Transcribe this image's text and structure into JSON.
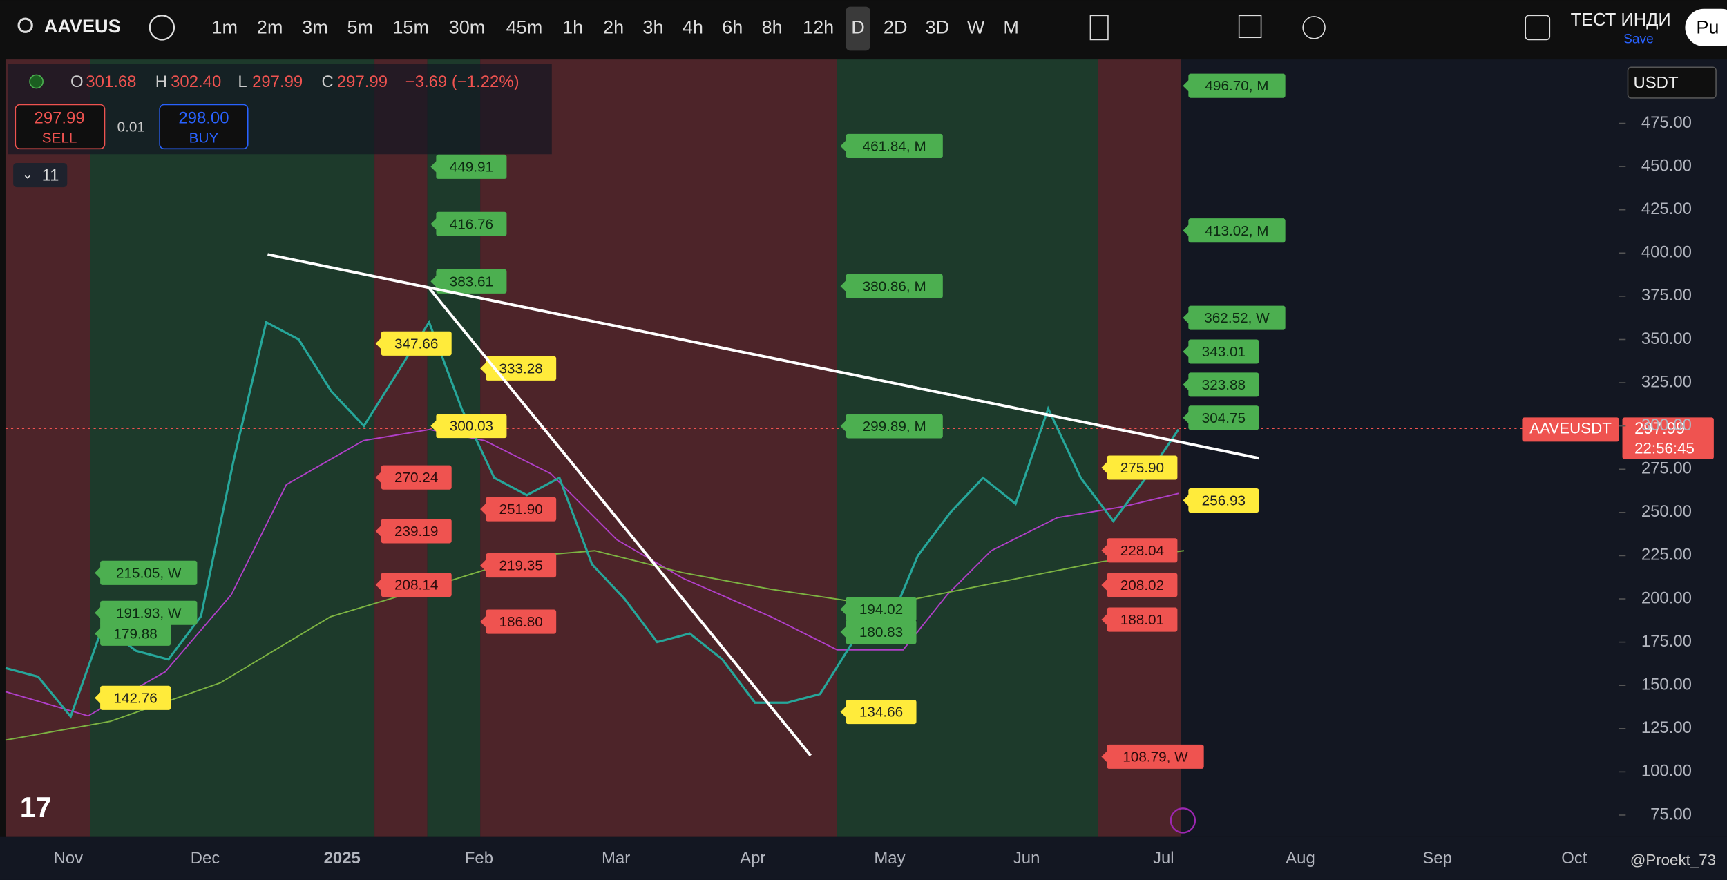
{
  "toolbar": {
    "symbol": "AAVEUS",
    "timeframes": [
      "1m",
      "2m",
      "3m",
      "5m",
      "15m",
      "30m",
      "45m",
      "1h",
      "2h",
      "3h",
      "4h",
      "6h",
      "8h",
      "12h",
      "D",
      "2D",
      "3D",
      "W",
      "M"
    ],
    "active": "D",
    "indicator": "ТЕСТ ИНДИ",
    "save": "Save",
    "publish": "Pu"
  },
  "legend": {
    "o_label": "O",
    "open": "301.68",
    "h_label": "H",
    "high": "302.40",
    "l_label": "L",
    "low": "297.99",
    "c_label": "C",
    "close": "297.99",
    "change": "−3.69 (−1.22%)"
  },
  "trade": {
    "sell_price": "297.99",
    "sell": "SELL",
    "spread": "0.01",
    "buy_price": "298.00",
    "buy": "BUY"
  },
  "indicators_count": "11",
  "currency": "USDT",
  "price_label": {
    "symbol": "AAVEUSDT",
    "price": "297.99",
    "countdown": "22:56:45"
  },
  "watermark": "@Proekt_73",
  "chart": {
    "ylim": [
      62.3,
      511.9
    ],
    "yticks": [
      {
        "value": 75,
        "label": "75.00"
      },
      {
        "value": 100,
        "label": "100.00"
      },
      {
        "value": 125,
        "label": "125.00"
      },
      {
        "value": 150,
        "label": "150.00"
      },
      {
        "value": 175,
        "label": "175.00"
      },
      {
        "value": 200,
        "label": "200.00"
      },
      {
        "value": 225,
        "label": "225.00"
      },
      {
        "value": 250,
        "label": "250.00"
      },
      {
        "value": 275,
        "label": "275.00"
      },
      {
        "value": 300,
        "label": "300.00"
      },
      {
        "value": 325,
        "label": "325.00"
      },
      {
        "value": 350,
        "label": "350.00"
      },
      {
        "value": 375,
        "label": "375.00"
      },
      {
        "value": 400,
        "label": "400.00"
      },
      {
        "value": 425,
        "label": "425.00"
      },
      {
        "value": 450,
        "label": "450.00"
      },
      {
        "value": 475,
        "label": "475.00"
      }
    ],
    "months": [
      "Nov",
      "Dec",
      "2025",
      "Feb",
      "Mar",
      "Apr",
      "May",
      "Jun",
      "Jul",
      "Aug",
      "Sep",
      "Oct"
    ],
    "trace": [
      160,
      155,
      132,
      185,
      170,
      165,
      190,
      280,
      360,
      350,
      320,
      300,
      330,
      360,
      310,
      270,
      260,
      270,
      220,
      200,
      175,
      180,
      165,
      140,
      140,
      145,
      175,
      180,
      225,
      250,
      270,
      255,
      310,
      270,
      245,
      270,
      298
    ],
    "trace_color": "#26a69a",
    "levels": [
      [
        {
          "value": 215.05,
          "label": "215.05, W",
          "color": "green"
        },
        {
          "value": 191.93,
          "label": "191.93, W",
          "color": "green"
        },
        {
          "value": 179.88,
          "label": "179.88",
          "color": "green"
        },
        {
          "value": 142.76,
          "label": "142.76",
          "color": "yellow"
        }
      ],
      [
        {
          "value": 347.66,
          "label": "347.66",
          "color": "yellow"
        },
        {
          "value": 270.24,
          "label": "270.24",
          "color": "red"
        },
        {
          "value": 239.19,
          "label": "239.19",
          "color": "red"
        },
        {
          "value": 208.14,
          "label": "208.14",
          "color": "red"
        }
      ],
      [
        {
          "value": 449.91,
          "label": "449.91",
          "color": "green"
        },
        {
          "value": 416.76,
          "label": "416.76",
          "color": "green"
        },
        {
          "value": 383.61,
          "label": "383.61",
          "color": "green"
        },
        {
          "value": 300.03,
          "label": "300.03",
          "color": "yellow"
        }
      ],
      [
        {
          "value": 333.28,
          "label": "333.28",
          "color": "yellow"
        },
        {
          "value": 251.9,
          "label": "251.90",
          "color": "red"
        },
        {
          "value": 219.35,
          "label": "219.35",
          "color": "red"
        },
        {
          "value": 186.8,
          "label": "186.80",
          "color": "red"
        }
      ],
      [
        {
          "value": 461.84,
          "label": "461.84, M",
          "color": "green"
        },
        {
          "value": 380.86,
          "label": "380.86, M",
          "color": "green"
        },
        {
          "value": 299.89,
          "label": "299.89, M",
          "color": "green"
        },
        {
          "value": 194.02,
          "label": "194.02",
          "color": "green"
        },
        {
          "value": 180.83,
          "label": "180.83",
          "color": "green"
        },
        {
          "value": 134.66,
          "label": "134.66",
          "color": "yellow"
        }
      ],
      [
        {
          "value": 275.9,
          "label": "275.90",
          "color": "yellow"
        },
        {
          "value": 228.04,
          "label": "228.04",
          "color": "red"
        },
        {
          "value": 208.02,
          "label": "208.02",
          "color": "red"
        },
        {
          "value": 188.01,
          "label": "188.01",
          "color": "red"
        },
        {
          "value": 108.79,
          "label": "108.79, W",
          "color": "red"
        }
      ],
      [
        {
          "value": 496.7,
          "label": "496.70, M",
          "color": "green"
        },
        {
          "value": 413.02,
          "label": "413.02, M",
          "color": "green"
        },
        {
          "value": 362.52,
          "label": "362.52, W",
          "color": "green"
        },
        {
          "value": 343.01,
          "label": "343.01",
          "color": "green"
        },
        {
          "value": 323.88,
          "label": "323.88",
          "color": "green"
        },
        {
          "value": 304.75,
          "label": "304.75",
          "color": "green"
        },
        {
          "value": 256.93,
          "label": "256.93",
          "color": "yellow"
        }
      ]
    ]
  }
}
